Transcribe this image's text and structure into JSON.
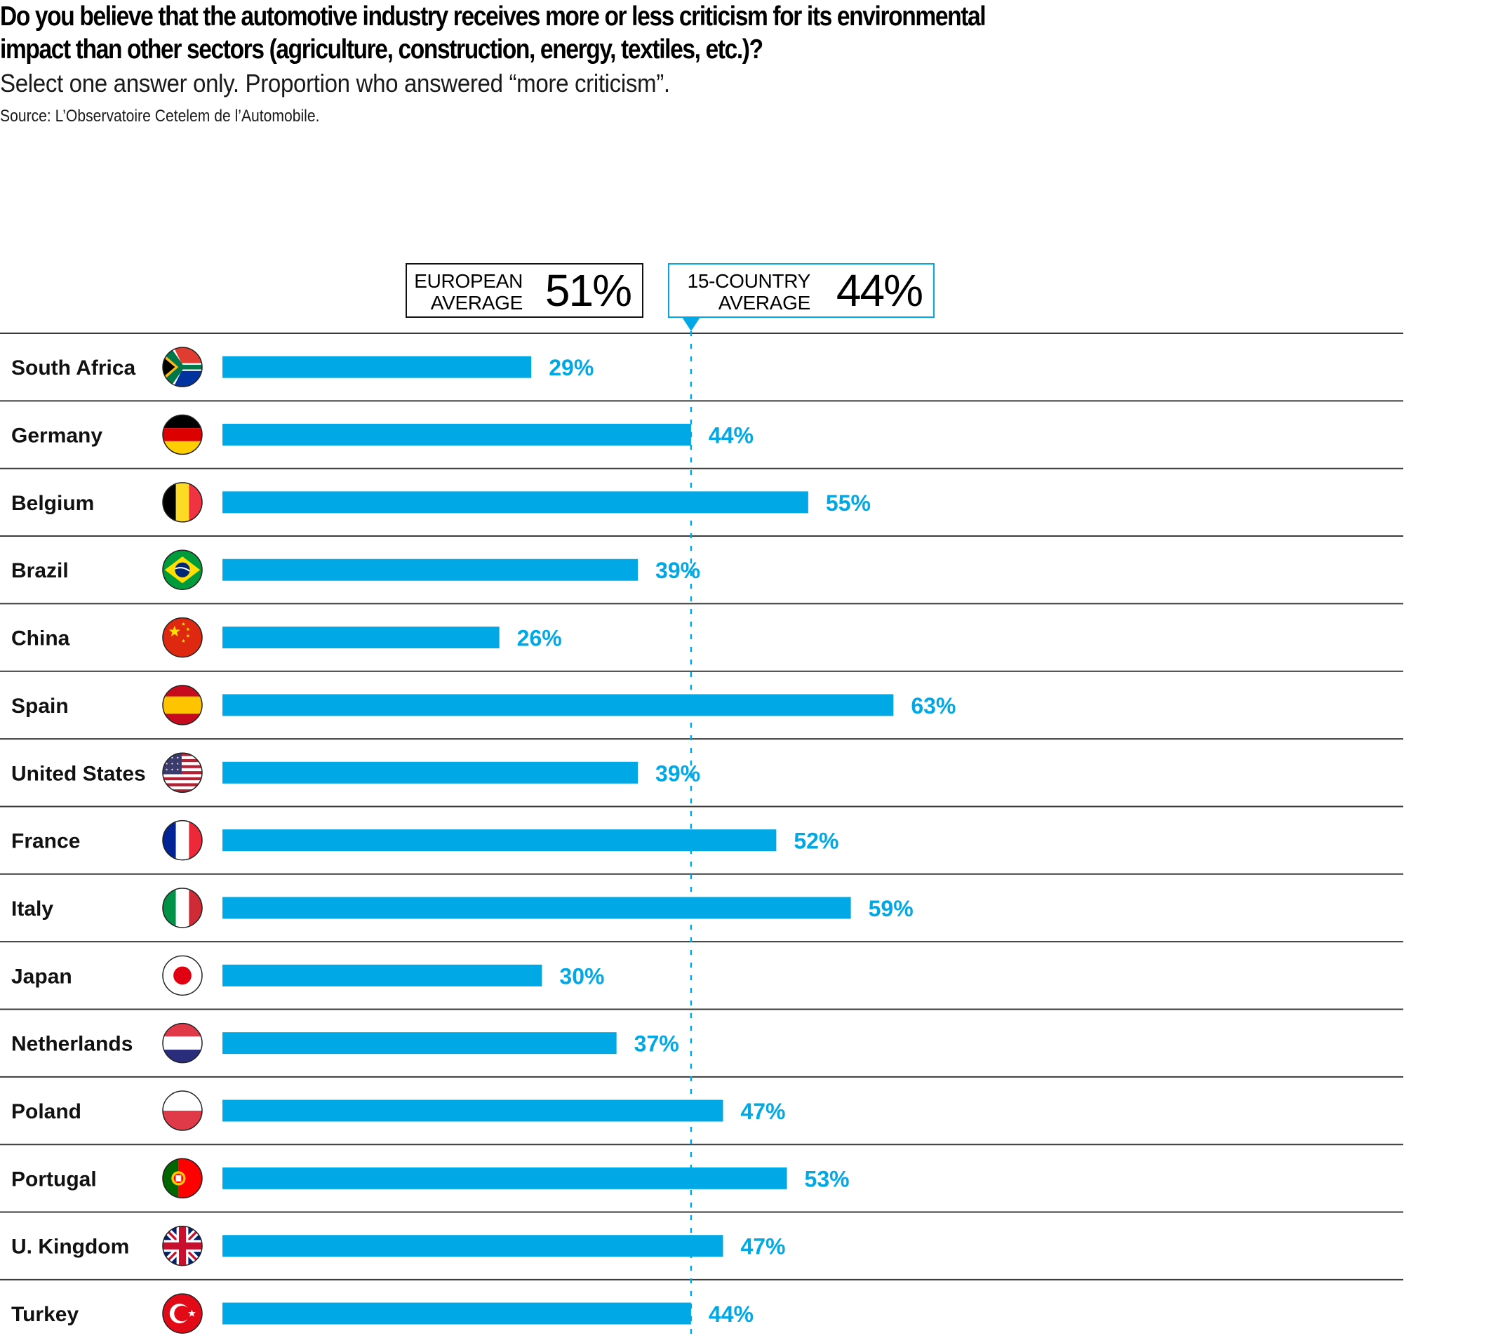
{
  "header": {
    "title_line1": "Do you believe that the automotive industry receives more or less criticism for its environmental",
    "title_line2": "impact than other sectors (agriculture, construction, energy, textiles, etc.)?",
    "subtitle": "Select one answer only. Proportion who answered “more criticism”.",
    "source": "Source: L’Observatoire Cetelem de l’Automobile."
  },
  "averages": {
    "european": {
      "label": "EUROPEAN\nAVERAGE",
      "value": "51%"
    },
    "fifteen_country": {
      "label": "15-COUNTRY\nAVERAGE",
      "value": "44%"
    }
  },
  "colors": {
    "bar": "#00a8e6",
    "reference_line": "#00a8e6",
    "row_divider": "#3a3a3a",
    "country_text": "#111111"
  },
  "chart_data": {
    "type": "bar",
    "orientation": "horizontal",
    "title": "Do you believe that the automotive industry receives more or less criticism for its environmental impact than other sectors (agriculture, construction, energy, textiles, etc.)?",
    "subtitle": "Select one answer only. Proportion who answered “more criticism”.",
    "xlabel": "",
    "ylabel": "",
    "unit": "%",
    "xlim": [
      0,
      100
    ],
    "grid": false,
    "reference_line": {
      "label": "15-COUNTRY AVERAGE",
      "value": 44
    },
    "reference_values": [
      {
        "label": "EUROPEAN AVERAGE",
        "value": 51
      },
      {
        "label": "15-COUNTRY AVERAGE",
        "value": 44
      }
    ],
    "categories": [
      "South Africa",
      "Germany",
      "Belgium",
      "Brazil",
      "China",
      "Spain",
      "United States",
      "France",
      "Italy",
      "Japan",
      "Netherlands",
      "Poland",
      "Portugal",
      "U. Kingdom",
      "Turkey"
    ],
    "flags": [
      "south-africa",
      "germany",
      "belgium",
      "brazil",
      "china",
      "spain",
      "united-states",
      "france",
      "italy",
      "japan",
      "netherlands",
      "poland",
      "portugal",
      "united-kingdom",
      "turkey"
    ],
    "values": [
      29,
      44,
      55,
      39,
      26,
      63,
      39,
      52,
      59,
      30,
      37,
      47,
      53,
      47,
      44
    ],
    "data_labels": [
      "29%",
      "44%",
      "55%",
      "39%",
      "26%",
      "63%",
      "39%",
      "52%",
      "59%",
      "30%",
      "37%",
      "47%",
      "53%",
      "47%",
      "44%"
    ]
  }
}
